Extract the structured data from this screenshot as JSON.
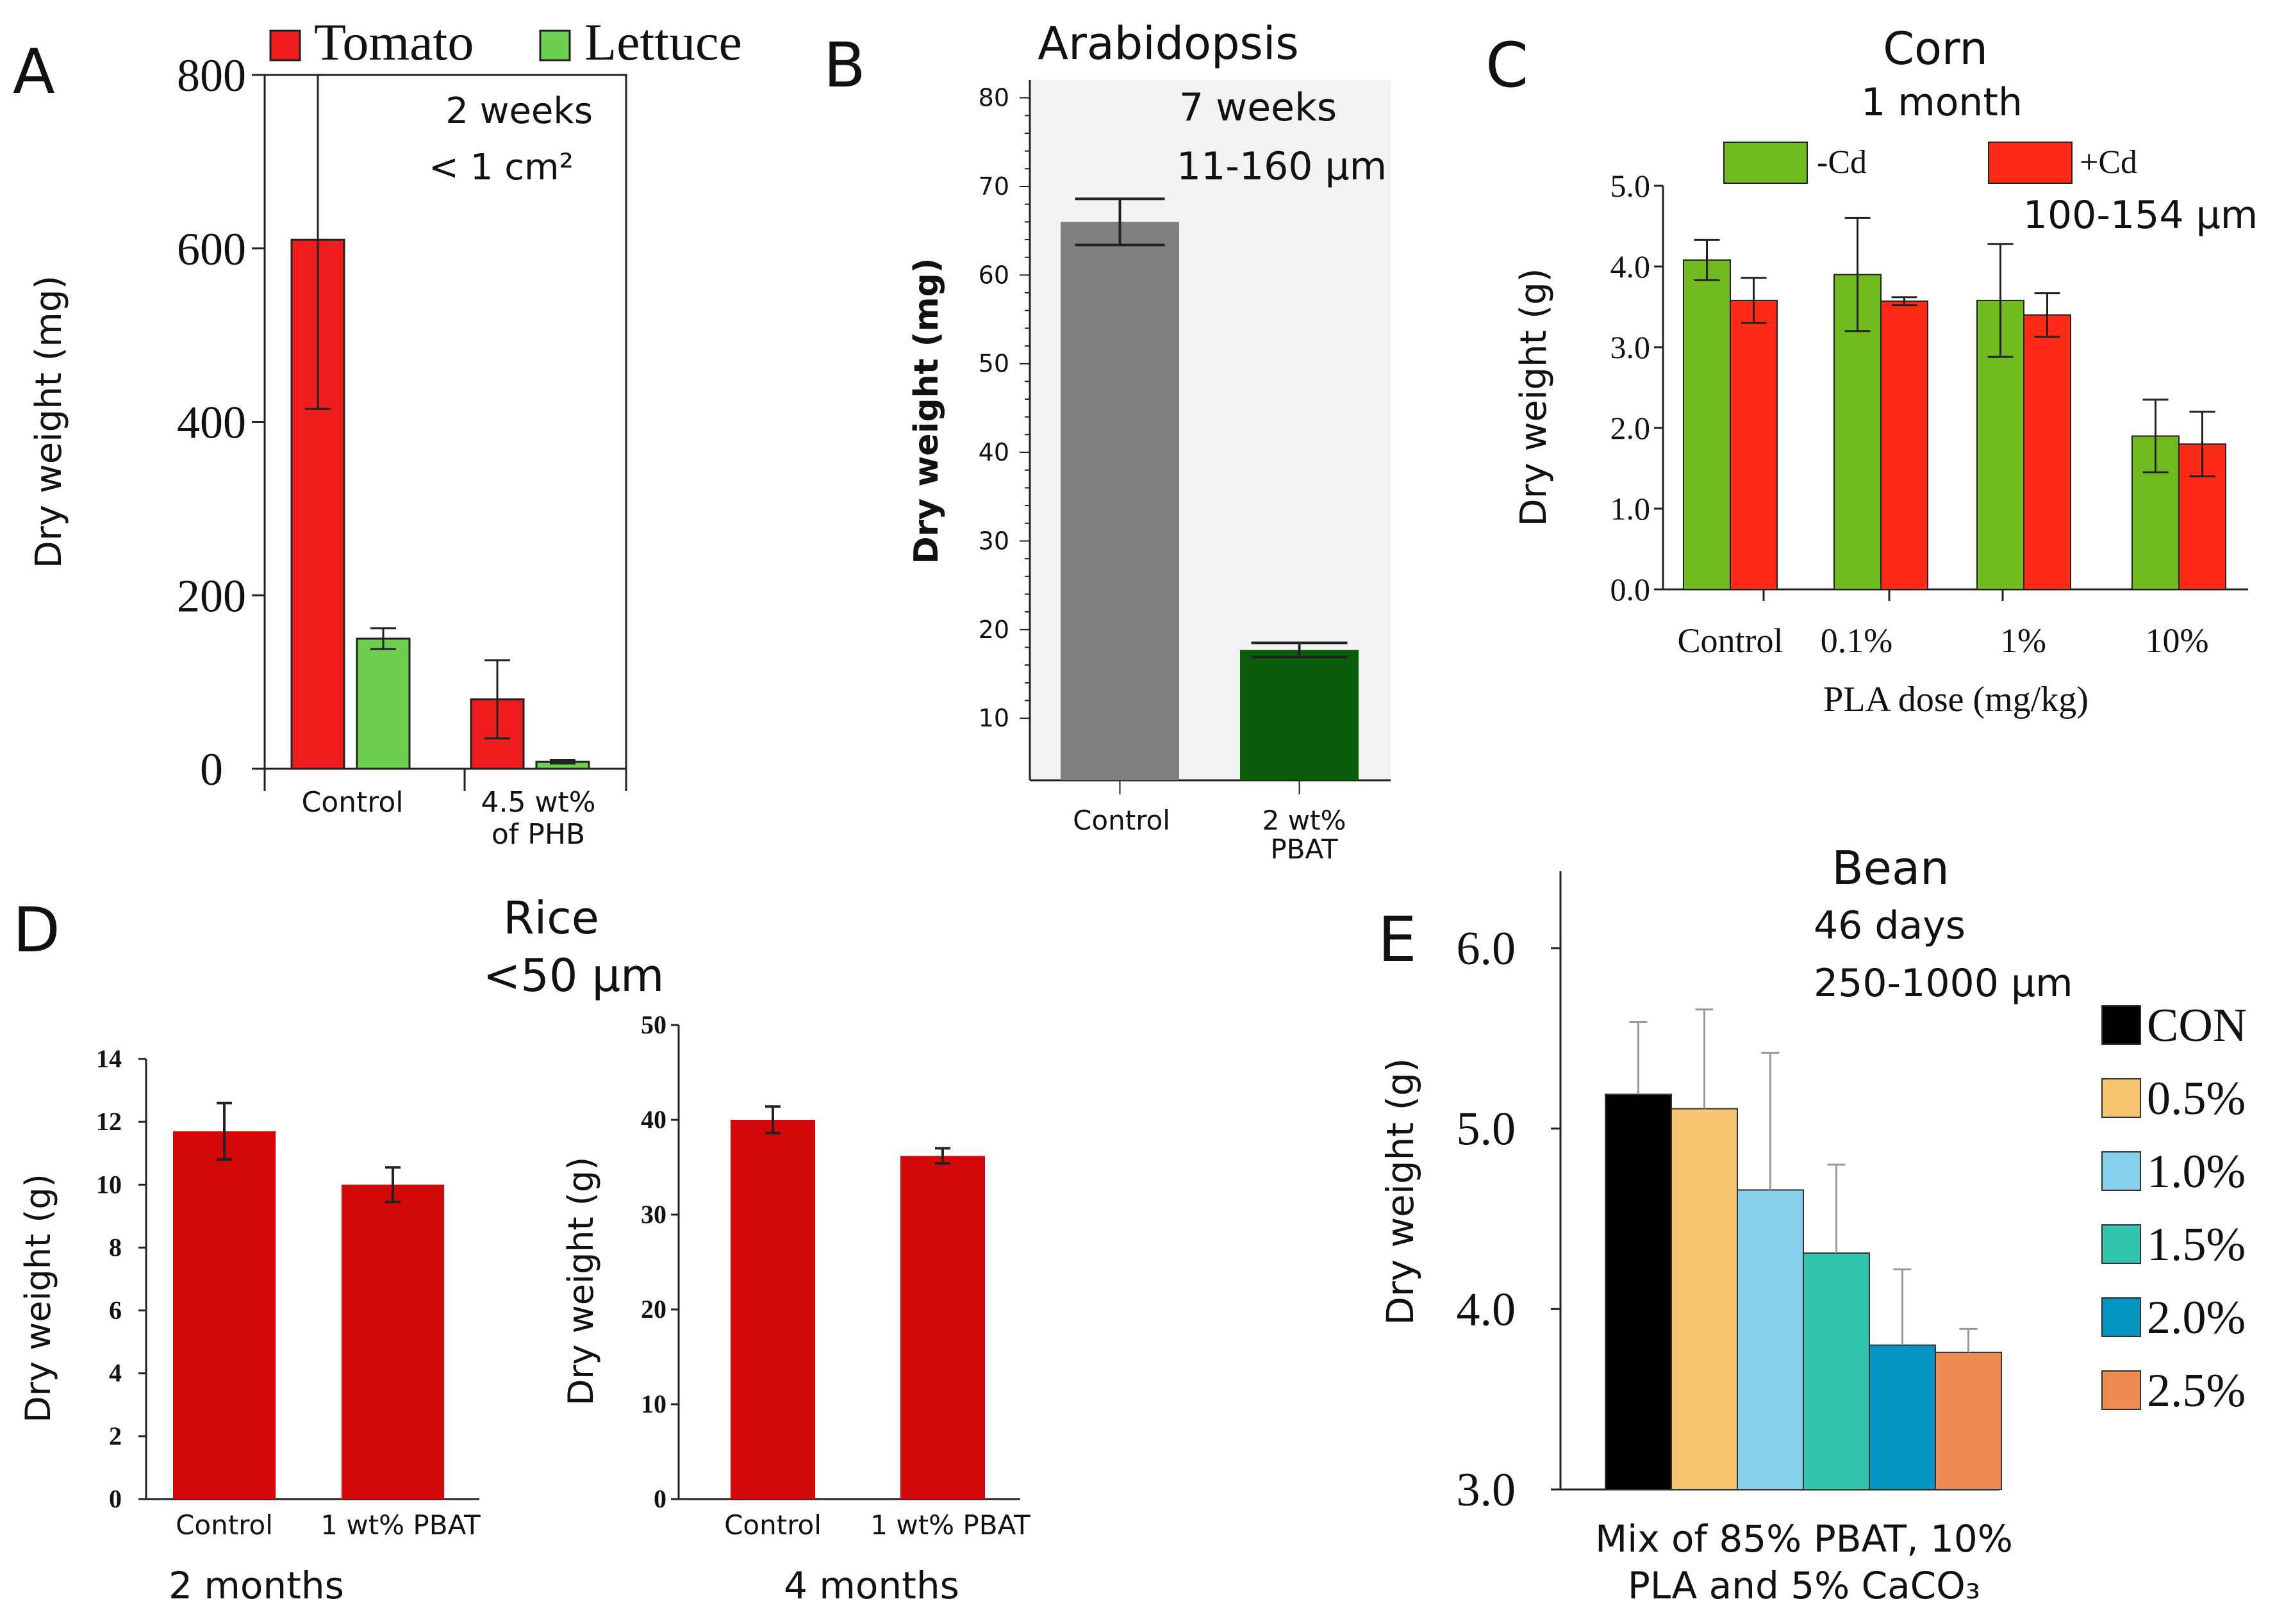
{
  "colors": {
    "tomato": "#ee1c1c",
    "lettuce": "#6ccf4d",
    "grey": "#808080",
    "dark_green": "#0a5c0a",
    "corn_green": "#72bb1f",
    "corn_red": "#ff2a16",
    "rice_red": "#d40808",
    "con": "#000000",
    "c05": "#f6c770",
    "c10": "#85d0ec",
    "c15": "#33c4ae",
    "c20": "#0496c3",
    "c25": "#ee8a51"
  },
  "chart_data": [
    {
      "panel": "A",
      "type": "bar",
      "title": "",
      "annotations": [
        "2 weeks",
        "< 1 cm²"
      ],
      "ylabel": "Dry weight (mg)",
      "xlabel": "",
      "ylim": [
        0,
        800
      ],
      "yticks": [
        "0",
        "200",
        "400",
        "600",
        "800"
      ],
      "categories": [
        [
          "Control"
        ],
        [
          "4.5 wt%",
          "of PHB"
        ]
      ],
      "legend": [
        "Tomato",
        "Lettuce"
      ],
      "series": [
        {
          "name": "Tomato",
          "values": [
            610,
            80
          ],
          "errors": [
            195,
            45
          ]
        },
        {
          "name": "Lettuce",
          "values": [
            150,
            8
          ],
          "errors": [
            12,
            2
          ]
        }
      ]
    },
    {
      "panel": "B",
      "type": "bar",
      "title": "Arabidopsis",
      "annotations": [
        "7 weeks",
        "11-160 µm"
      ],
      "ylabel": "Dry weight (mg)",
      "xlabel": "",
      "ylim": [
        3,
        82
      ],
      "yticks": [
        "10",
        "20",
        "30",
        "40",
        "50",
        "60",
        "70",
        "80"
      ],
      "categories": [
        [
          "Control"
        ],
        [
          "2 wt%",
          "PBAT"
        ]
      ],
      "values": [
        66,
        17.7
      ],
      "errors": [
        2.6,
        0.8
      ]
    },
    {
      "panel": "C",
      "type": "bar",
      "title": "Corn",
      "annotations": [
        "1 month",
        "100-154 µm"
      ],
      "ylabel": "Dry weight (g)",
      "xlabel": "PLA  dose (mg/kg)",
      "ylim": [
        0,
        5
      ],
      "yticks": [
        "0.0",
        "1.0",
        "2.0",
        "3.0",
        "4.0",
        "5.0"
      ],
      "categories": [
        "Control",
        "0.1%",
        "1%",
        "10%"
      ],
      "legend": [
        "-Cd",
        "+Cd"
      ],
      "series": [
        {
          "name": "-Cd",
          "values": [
            4.08,
            3.9,
            3.58,
            1.9
          ],
          "errors": [
            0.25,
            0.7,
            0.7,
            0.45
          ]
        },
        {
          "name": "+Cd",
          "values": [
            3.58,
            3.57,
            3.4,
            1.8
          ],
          "errors": [
            0.28,
            0.05,
            0.27,
            0.4
          ]
        }
      ]
    },
    {
      "panel": "D",
      "type": "bar",
      "title": "Rice",
      "annotations": [
        "<50 µm"
      ],
      "subplots": [
        {
          "caption": "2 months",
          "ylabel": "Dry weight (g)",
          "ylim": [
            0,
            14
          ],
          "yticks": [
            "0",
            "2",
            "4",
            "6",
            "8",
            "10",
            "12",
            "14"
          ],
          "categories": [
            "Control",
            "1 wt% PBAT"
          ],
          "values": [
            11.7,
            10
          ],
          "errors": [
            0.9,
            0.55
          ]
        },
        {
          "caption": "4 months",
          "ylabel": "Dry weight (g)",
          "ylim": [
            0,
            50
          ],
          "yticks": [
            "0",
            "10",
            "20",
            "30",
            "40",
            "50"
          ],
          "categories": [
            "Control",
            "1 wt% PBAT"
          ],
          "values": [
            40,
            36.2
          ],
          "errors": [
            1.4,
            0.8
          ]
        }
      ]
    },
    {
      "panel": "E",
      "type": "bar",
      "title": "Bean",
      "annotations": [
        "46 days",
        "250-1000 µm"
      ],
      "ylabel": "Dry weight (g)",
      "xlabel": [
        "Mix of 85% PBAT, 10%",
        "PLA and 5% CaCO₃"
      ],
      "ylim": [
        3,
        6.5
      ],
      "yticks": [
        "3.0",
        "4.0",
        "5.0",
        "6.0"
      ],
      "categories": [
        "CON",
        "0.5%",
        "1.0%",
        "1.5%",
        "2.0%",
        "2.5%"
      ],
      "legend": [
        "CON",
        "0.5%",
        "1.0%",
        "1.5%",
        "2.0%",
        "2.5%"
      ],
      "values": [
        5.19,
        5.11,
        4.66,
        4.31,
        3.8,
        3.76
      ],
      "errors": [
        0.4,
        0.55,
        0.76,
        0.49,
        0.42,
        0.13
      ]
    }
  ],
  "labels": {
    "A": "A",
    "B": "B",
    "C": "C",
    "D": "D",
    "E": "E"
  }
}
